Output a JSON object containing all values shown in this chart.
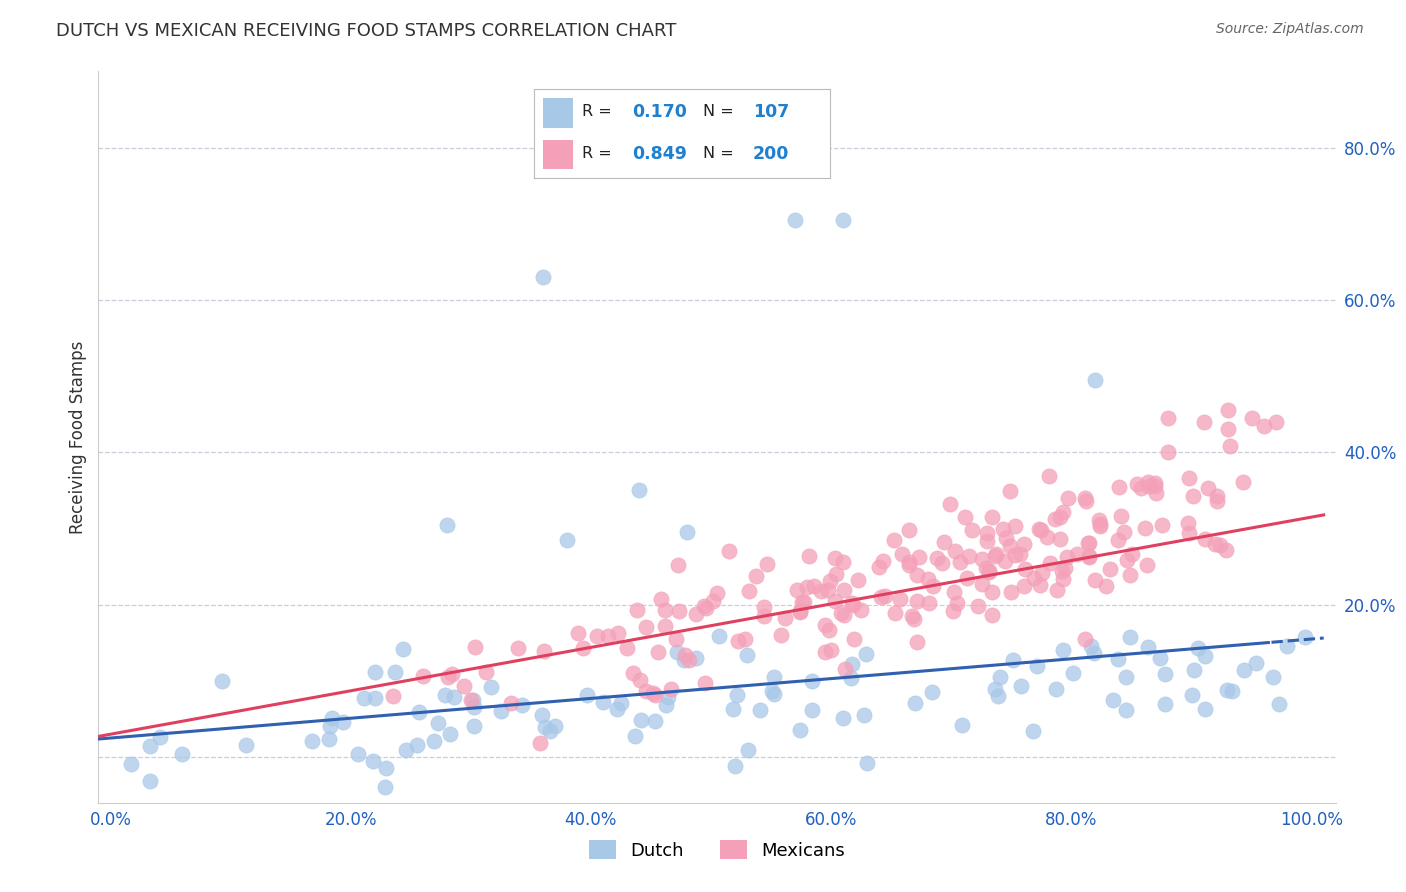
{
  "title": "DUTCH VS MEXICAN RECEIVING FOOD STAMPS CORRELATION CHART",
  "source": "Source: ZipAtlas.com",
  "ylabel": "Receiving Food Stamps",
  "dutch_R": 0.17,
  "dutch_N": 107,
  "mexican_R": 0.849,
  "mexican_N": 200,
  "dutch_color": "#a8c8e8",
  "mexican_color": "#f4a0b8",
  "dutch_line_color": "#3060b0",
  "mexican_line_color": "#e04060",
  "title_color": "#333333",
  "source_color": "#666666",
  "legend_text_color": "#222222",
  "legend_value_color": "#2080d0",
  "axis_tick_color": "#2060c0",
  "background": "#ffffff",
  "grid_color": "#ccccdd",
  "xlim": [
    -0.01,
    1.02
  ],
  "ylim": [
    -0.06,
    0.9
  ],
  "xticks": [
    0.0,
    0.2,
    0.4,
    0.6,
    0.8,
    1.0
  ],
  "yticks": [
    0.0,
    0.2,
    0.4,
    0.6,
    0.8
  ],
  "xticklabels": [
    "0.0%",
    "20.0%",
    "40.0%",
    "60.0%",
    "80.0%",
    "100.0%"
  ],
  "yticklabels_right": [
    "",
    "20.0%",
    "40.0%",
    "60.0%",
    "80.0%"
  ]
}
